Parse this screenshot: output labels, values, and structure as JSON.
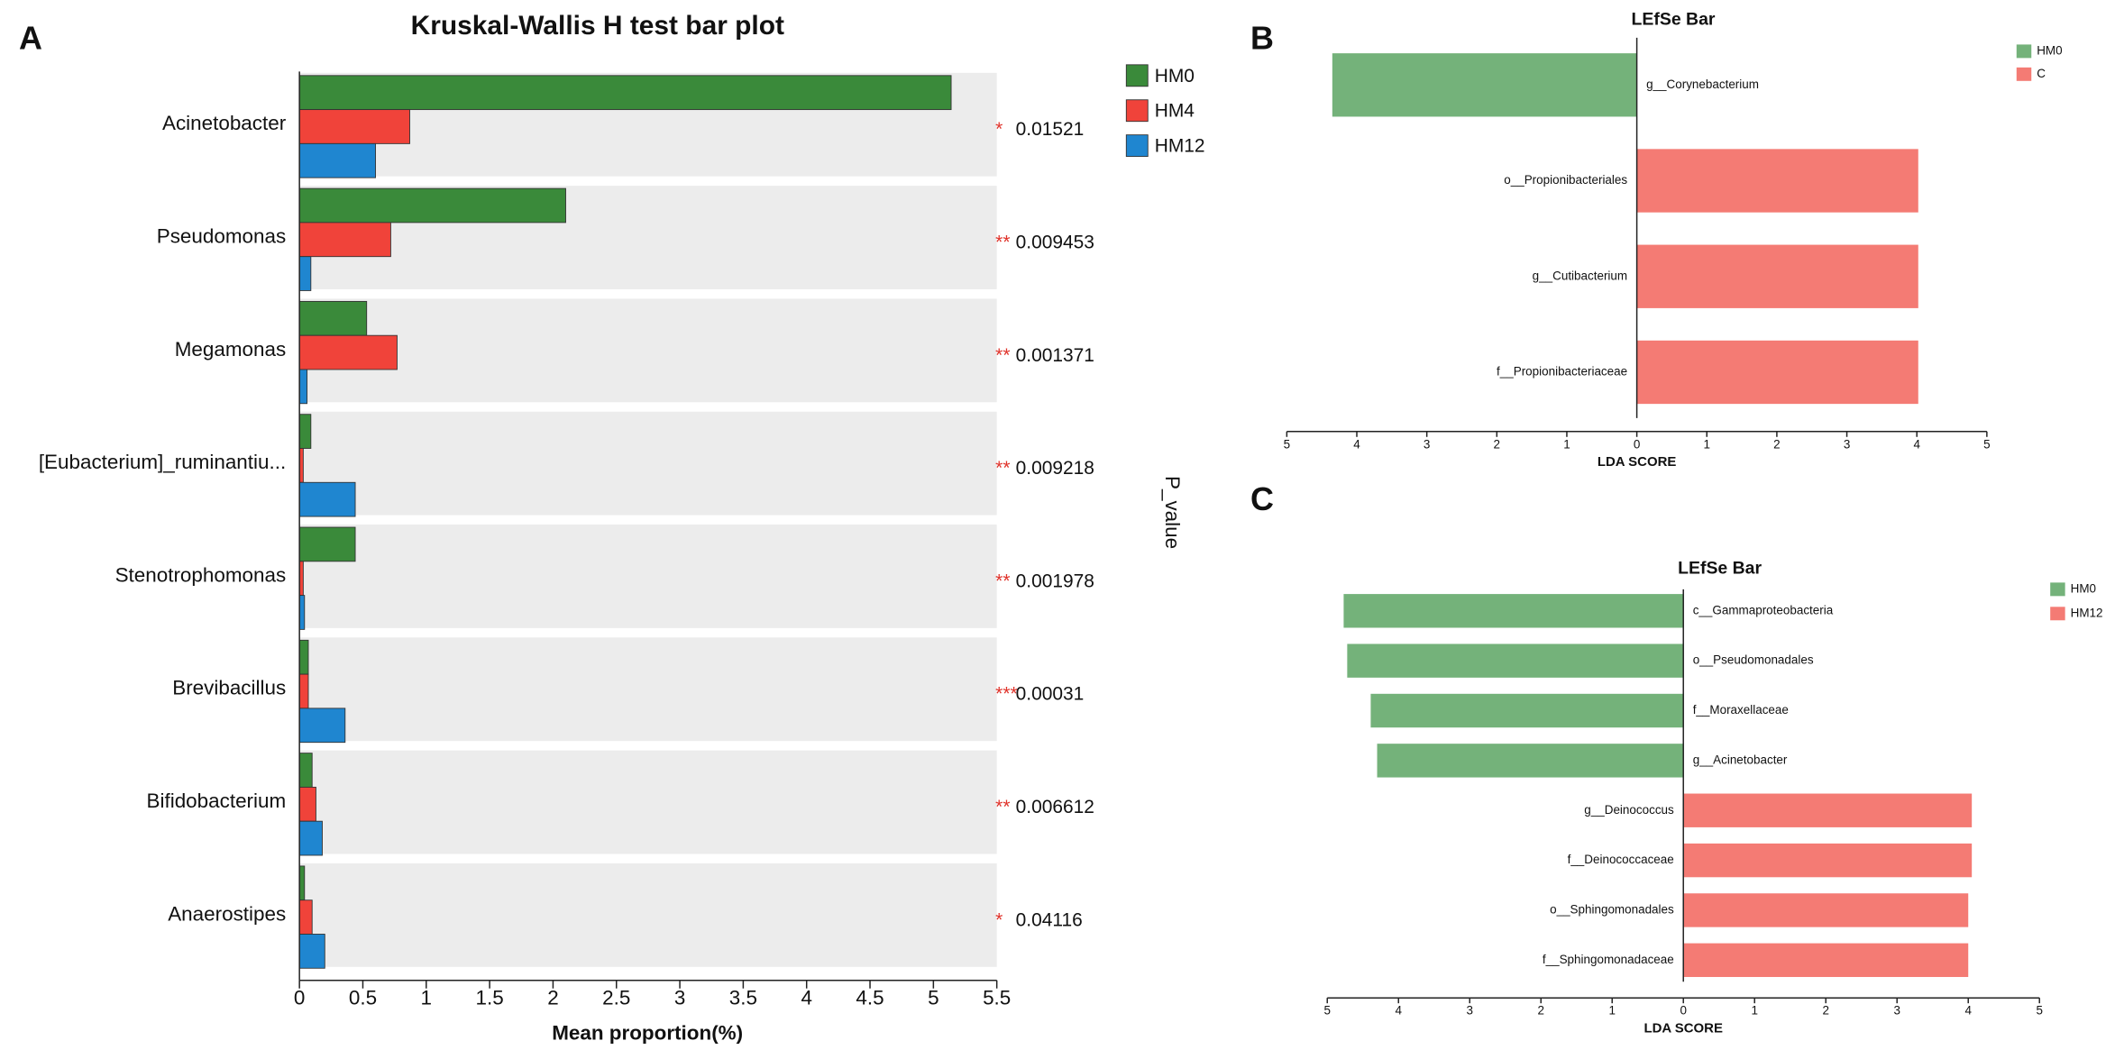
{
  "chart_data": [
    {
      "type": "bar",
      "orientation": "horizontal",
      "panel": "A",
      "title": "Kruskal-Wallis H test bar plot",
      "x_label": "Mean proportion(%)",
      "side_label": "P_value",
      "categories": [
        "Acinetobacter",
        "Pseudomonas",
        "Megamonas",
        "[Eubacterium]_ruminantiu...",
        "Stenotrophomonas",
        "Brevibacillus",
        "Bifidobacterium",
        "Anaerostipes"
      ],
      "series": [
        {
          "name": "HM0",
          "color": "#3a8a3a",
          "values": [
            5.14,
            2.1,
            0.53,
            0.09,
            0.44,
            0.07,
            0.1,
            0.04
          ]
        },
        {
          "name": "HM4",
          "color": "#f0433a",
          "values": [
            0.87,
            0.72,
            0.77,
            0.03,
            0.03,
            0.07,
            0.13,
            0.1
          ]
        },
        {
          "name": "HM12",
          "color": "#1f86d0",
          "values": [
            0.6,
            0.09,
            0.06,
            0.44,
            0.04,
            0.36,
            0.18,
            0.2
          ]
        }
      ],
      "significance": [
        "*",
        "**",
        "**",
        "**",
        "**",
        "***",
        "**",
        "*"
      ],
      "p_values": [
        0.01521,
        0.009453,
        0.001371,
        0.009218,
        0.001978,
        0.00031,
        0.006612,
        0.04116
      ],
      "xlim": [
        0,
        5.5
      ],
      "xticks": [
        0,
        0.5,
        1,
        1.5,
        2,
        2.5,
        3,
        3.5,
        4,
        4.5,
        5,
        5.5
      ],
      "legend": "top-right"
    },
    {
      "type": "lefse",
      "panel": "B",
      "title": "LEfSe Bar",
      "x_label": "LDA SCORE",
      "categories": [
        "g__Corynebacterium",
        "o__Propionibacteriales",
        "g__Cutibacterium",
        "f__Propionibacteriaceae"
      ],
      "series": [
        {
          "name": "HM0",
          "color": "#74b27a",
          "values": [
            -4.35,
            null,
            null,
            null
          ]
        },
        {
          "name": "C",
          "color": "#f47b74",
          "values": [
            null,
            4.02,
            4.02,
            4.02
          ]
        }
      ],
      "xlim": [
        -5,
        5
      ],
      "xticks": [
        {
          "value": -5,
          "label": "5"
        },
        {
          "value": -4,
          "label": "4"
        },
        {
          "value": -3,
          "label": "3"
        },
        {
          "value": -2,
          "label": "2"
        },
        {
          "value": -1,
          "label": "1"
        },
        0,
        1,
        2,
        3,
        4,
        5
      ]
    },
    {
      "type": "lefse",
      "panel": "C",
      "title": "LEfSe Bar",
      "x_label": "LDA SCORE",
      "categories": [
        "c__Gammaproteobacteria",
        "o__Pseudomonadales",
        "f__Moraxellaceae",
        "g__Acinetobacter",
        "g__Deinococcus",
        "f__Deinococcaceae",
        "o__Sphingomonadales",
        "f__Sphingomonadaceae"
      ],
      "series": [
        {
          "name": "HM0",
          "color": "#74b27a",
          "values": [
            -4.77,
            -4.72,
            -4.39,
            -4.3,
            null,
            null,
            null,
            null
          ]
        },
        {
          "name": "HM12",
          "color": "#f47b74",
          "values": [
            null,
            null,
            null,
            null,
            4.05,
            4.05,
            4.0,
            4.0
          ]
        }
      ],
      "xlim": [
        -5,
        5
      ],
      "xticks": [
        {
          "value": -5,
          "label": "5"
        },
        {
          "value": -4,
          "label": "4"
        },
        {
          "value": -3,
          "label": "3"
        },
        {
          "value": -2,
          "label": "2"
        },
        {
          "value": -1,
          "label": "1"
        },
        0,
        1,
        2,
        3,
        4,
        5
      ]
    }
  ]
}
